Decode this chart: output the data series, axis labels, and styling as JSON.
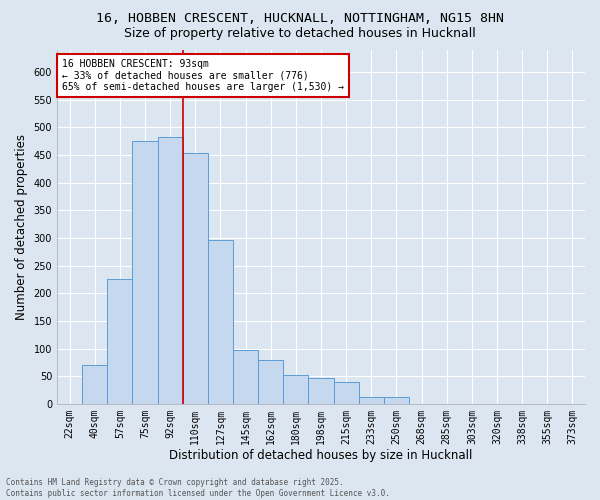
{
  "title_line1": "16, HOBBEN CRESCENT, HUCKNALL, NOTTINGHAM, NG15 8HN",
  "title_line2": "Size of property relative to detached houses in Hucknall",
  "xlabel": "Distribution of detached houses by size in Hucknall",
  "ylabel": "Number of detached properties",
  "categories": [
    "22sqm",
    "40sqm",
    "57sqm",
    "75sqm",
    "92sqm",
    "110sqm",
    "127sqm",
    "145sqm",
    "162sqm",
    "180sqm",
    "198sqm",
    "215sqm",
    "233sqm",
    "250sqm",
    "268sqm",
    "285sqm",
    "303sqm",
    "320sqm",
    "338sqm",
    "355sqm",
    "373sqm"
  ],
  "values": [
    0,
    70,
    225,
    475,
    483,
    453,
    297,
    98,
    80,
    53,
    47,
    40,
    12,
    12,
    0,
    0,
    0,
    0,
    0,
    0,
    0
  ],
  "bar_color": "#c5d8ed",
  "bar_edge_color": "#5b9bd5",
  "vline_color": "#cc0000",
  "vline_x": 4.5,
  "annotation_text": "16 HOBBEN CRESCENT: 93sqm\n← 33% of detached houses are smaller (776)\n65% of semi-detached houses are larger (1,530) →",
  "annotation_box_color": "#ffffff",
  "annotation_box_edge": "#cc0000",
  "ylim": [
    0,
    640
  ],
  "yticks": [
    0,
    50,
    100,
    150,
    200,
    250,
    300,
    350,
    400,
    450,
    500,
    550,
    600
  ],
  "background_color": "#dce6f1",
  "plot_bg_color": "#dce6f1",
  "footer_text": "Contains HM Land Registry data © Crown copyright and database right 2025.\nContains public sector information licensed under the Open Government Licence v3.0.",
  "title_fontsize": 9.5,
  "subtitle_fontsize": 9,
  "tick_fontsize": 7,
  "label_fontsize": 8.5,
  "annotation_fontsize": 7
}
